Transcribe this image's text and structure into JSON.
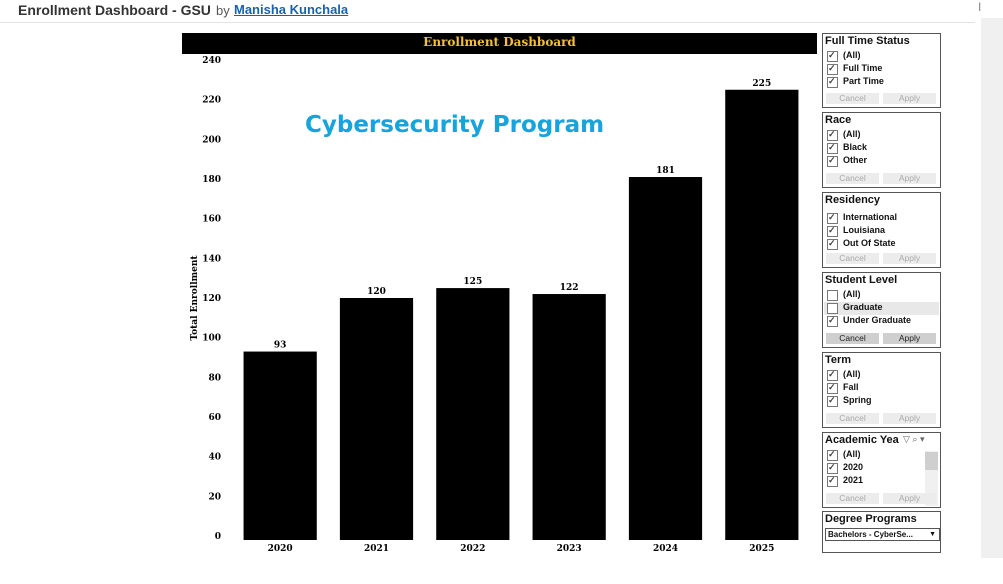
{
  "header": {
    "title": "Enrollment Dashboard - GSU",
    "by": "by",
    "author": "Manisha Kunchala",
    "edge_mark": "I"
  },
  "overlay_label": "Cybersecurity Program",
  "chart_data": {
    "type": "bar",
    "title": "Enrollment Dashboard",
    "ylabel": "Total Enrollment",
    "xlabel": "",
    "categories": [
      "2020",
      "2021",
      "2022",
      "2023",
      "2024",
      "2025"
    ],
    "values": [
      93,
      120,
      125,
      122,
      181,
      225
    ],
    "ylim": [
      0,
      240
    ],
    "yticks": [
      0,
      20,
      40,
      60,
      80,
      100,
      120,
      140,
      160,
      180,
      200,
      220,
      240
    ],
    "bar_color": "#000000",
    "title_color": "#f2c233",
    "title_background": "#000000",
    "grid": false,
    "legend": "none"
  },
  "filters": {
    "full_time_status": {
      "title": "Full Time Status",
      "options": [
        {
          "label": "(All)",
          "checked": true
        },
        {
          "label": "Full Time",
          "checked": true
        },
        {
          "label": "Part Time",
          "checked": true
        }
      ],
      "cancel": "Cancel",
      "apply": "Apply",
      "buttons_active": false
    },
    "race": {
      "title": "Race",
      "options": [
        {
          "label": "(All)",
          "checked": true
        },
        {
          "label": "Black",
          "checked": true
        },
        {
          "label": "Other",
          "checked": true
        }
      ],
      "cancel": "Cancel",
      "apply": "Apply",
      "buttons_active": false
    },
    "residency": {
      "title": "Residency",
      "options": [
        {
          "label": "International",
          "checked": true
        },
        {
          "label": "Louisiana",
          "checked": true
        },
        {
          "label": "Out Of State",
          "checked": true
        }
      ],
      "cancel": "Cancel",
      "apply": "Apply",
      "buttons_active": false
    },
    "student_level": {
      "title": "Student Level",
      "options": [
        {
          "label": "(All)",
          "checked": false
        },
        {
          "label": "Graduate",
          "checked": false
        },
        {
          "label": "Under Graduate",
          "checked": true
        }
      ],
      "cancel": "Cancel",
      "apply": "Apply",
      "buttons_active": true
    },
    "term": {
      "title": "Term",
      "options": [
        {
          "label": "(All)",
          "checked": true
        },
        {
          "label": "Fall",
          "checked": true
        },
        {
          "label": "Spring",
          "checked": true
        }
      ],
      "cancel": "Cancel",
      "apply": "Apply",
      "buttons_active": false
    },
    "academic_year": {
      "title": "Academic Yea",
      "options": [
        {
          "label": "(All)",
          "checked": true
        },
        {
          "label": "2020",
          "checked": true
        },
        {
          "label": "2021",
          "checked": true
        }
      ],
      "cancel": "Cancel",
      "apply": "Apply",
      "buttons_active": false
    },
    "degree_programs": {
      "title": "Degree Programs",
      "selected": "Bachelors - CyberSe..."
    }
  }
}
